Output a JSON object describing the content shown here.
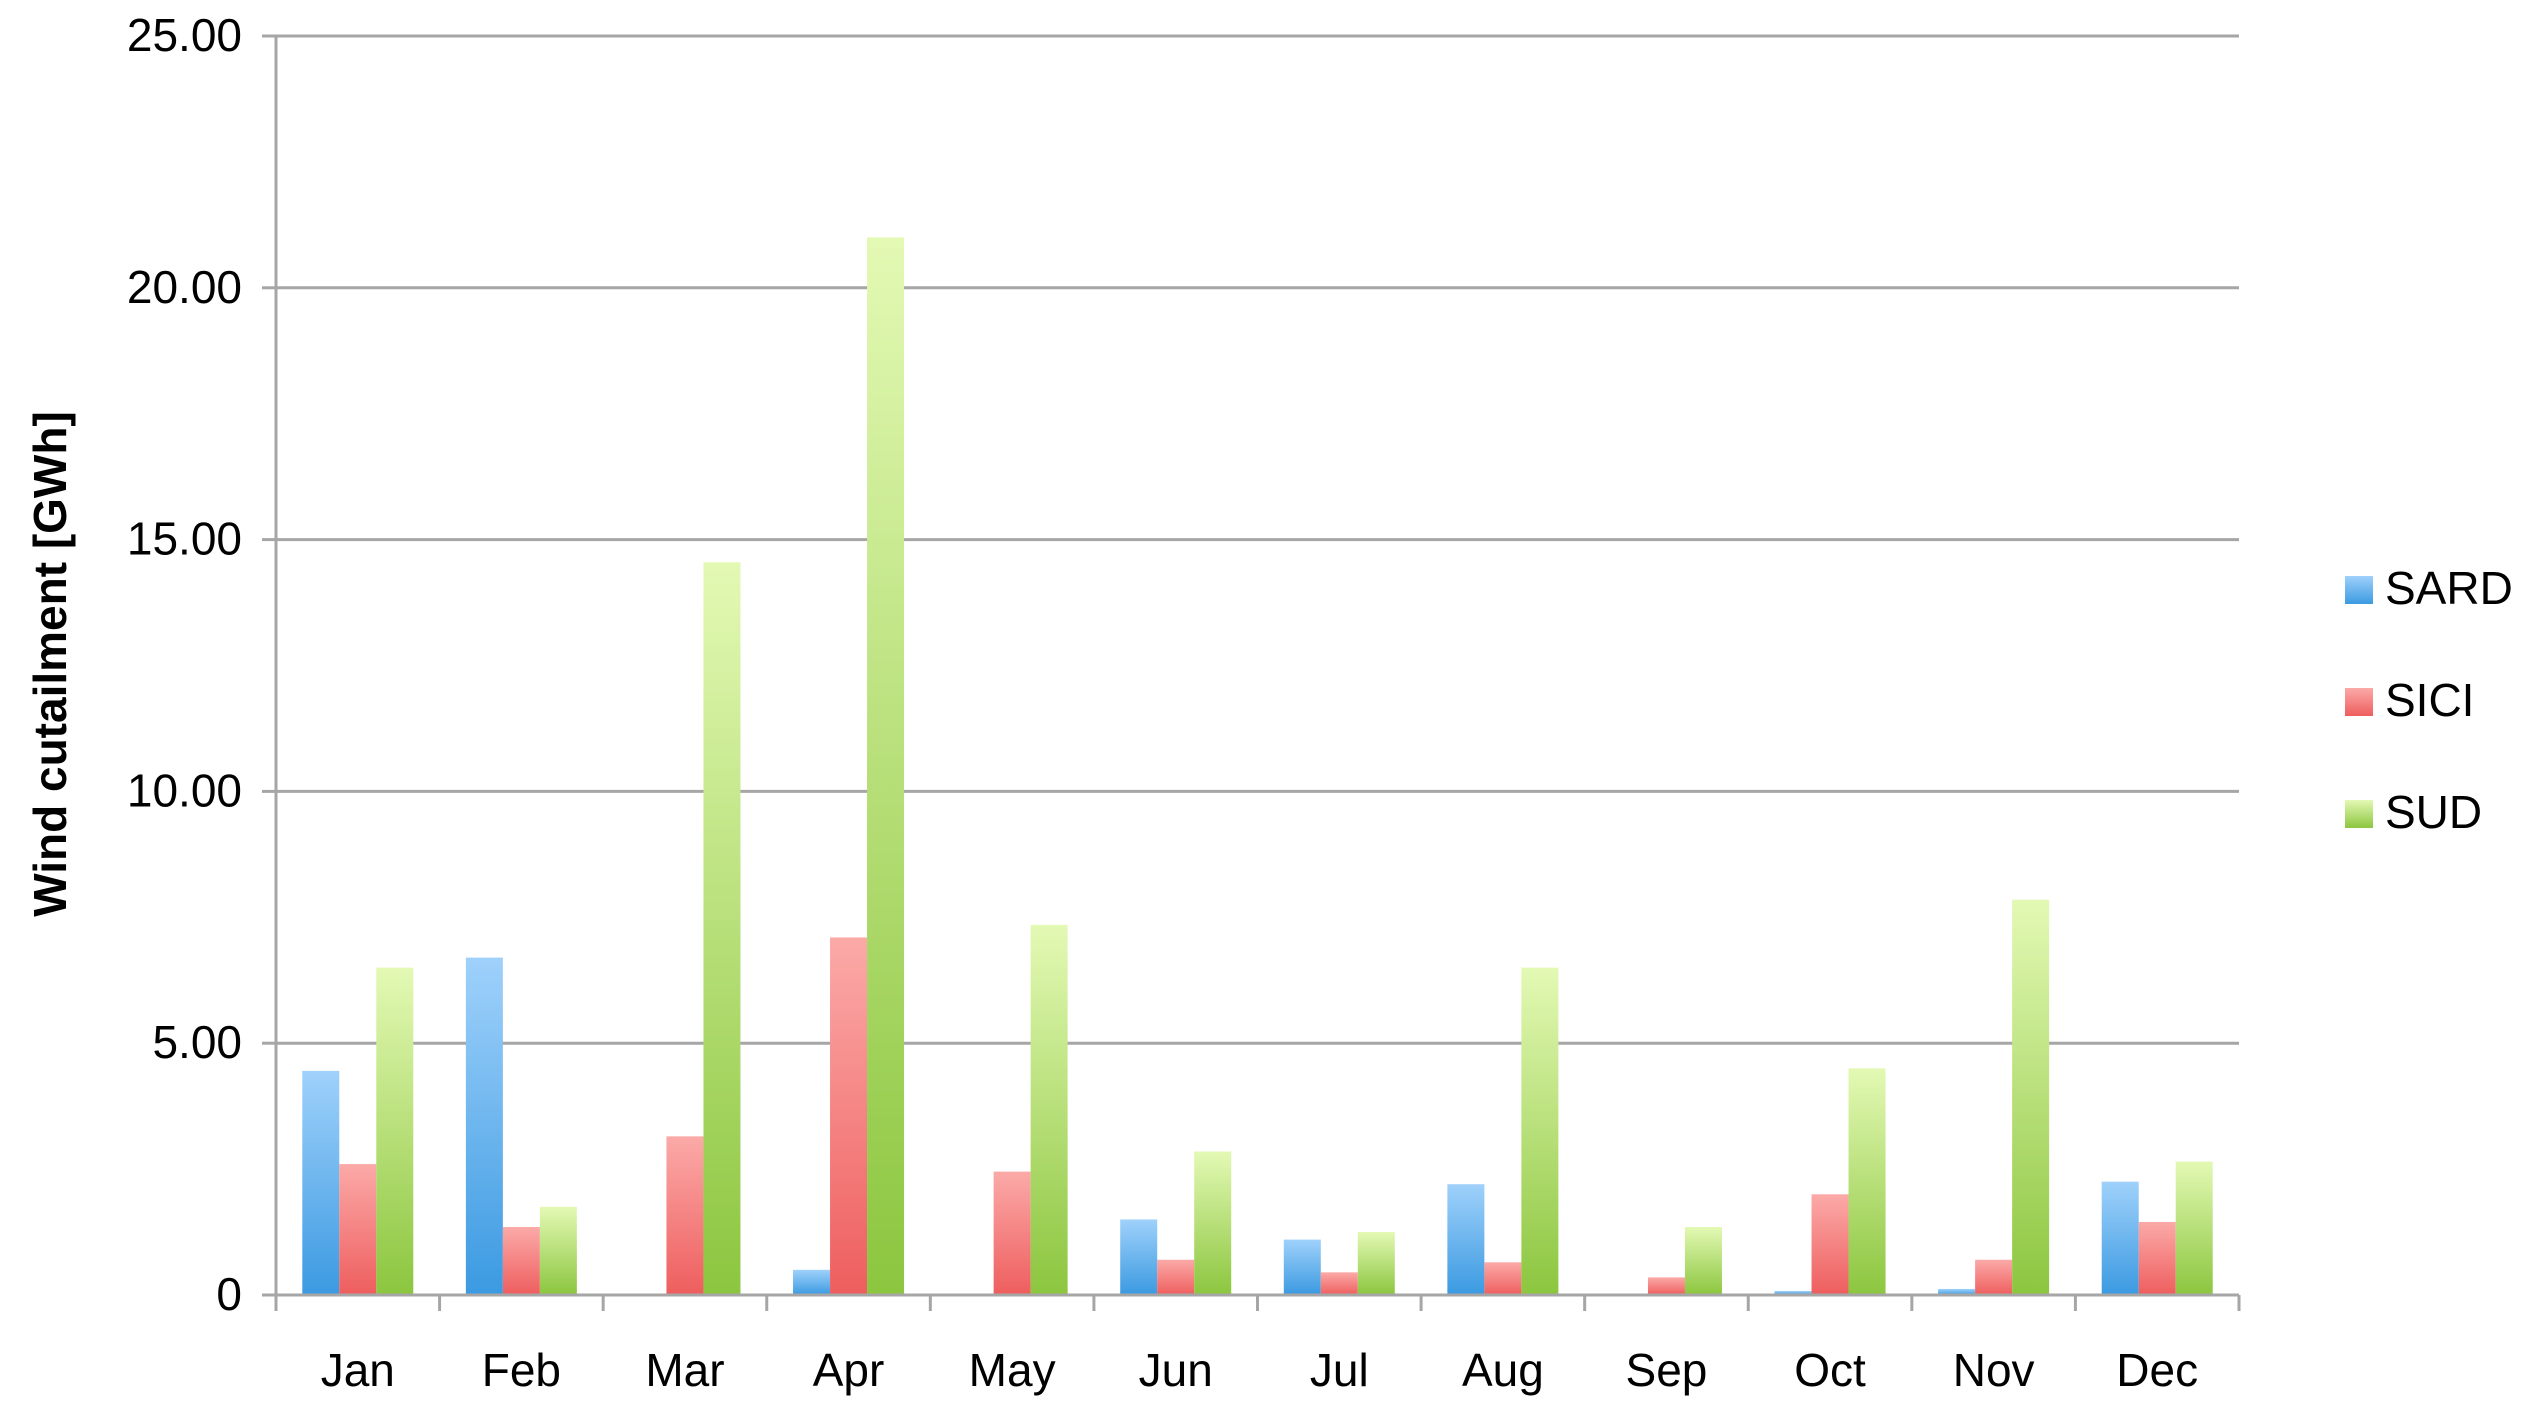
{
  "chart_data": {
    "type": "bar",
    "title": "",
    "xlabel": "",
    "ylabel": "Wind cutailment [GWh]",
    "ylim": [
      0,
      25
    ],
    "yticks": [
      0,
      5,
      10,
      15,
      20,
      25
    ],
    "ytick_labels": [
      "0",
      "5.00",
      "10.00",
      "15.00",
      "20.00",
      "25.00"
    ],
    "grid": "horizontal",
    "legend_position": "right",
    "categories": [
      "Jan",
      "Feb",
      "Mar",
      "Apr",
      "May",
      "Jun",
      "Jul",
      "Aug",
      "Sep",
      "Oct",
      "Nov",
      "Dec"
    ],
    "series": [
      {
        "name": "SARD",
        "color": "#3b9ae1",
        "color_light": "#9fd1fb",
        "values": [
          4.45,
          6.7,
          0.0,
          0.5,
          0.0,
          1.5,
          1.1,
          2.2,
          0.0,
          0.08,
          0.12,
          2.25
        ]
      },
      {
        "name": "SICI",
        "color": "#ee5e5e",
        "color_light": "#fbaaa8",
        "values": [
          2.6,
          1.35,
          3.15,
          7.1,
          2.45,
          0.7,
          0.45,
          0.65,
          0.35,
          2.0,
          0.7,
          1.45
        ]
      },
      {
        "name": "SUD",
        "color": "#8cc63f",
        "color_light": "#e3f9b4",
        "values": [
          6.5,
          1.75,
          14.55,
          21.0,
          7.35,
          2.85,
          1.25,
          6.5,
          1.35,
          4.5,
          7.85,
          2.65
        ]
      }
    ]
  }
}
